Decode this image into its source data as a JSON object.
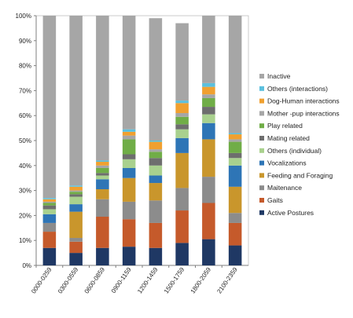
{
  "chart_data": {
    "type": "bar",
    "stacked": "percent",
    "categories": [
      "0000-0259",
      "0300-0559",
      "0600-0859",
      "0900-1159",
      "1200-1459",
      "1500-1759",
      "1800-2059",
      "2100-2359"
    ],
    "ylim": [
      0,
      100
    ],
    "y_ticks": [
      "0%",
      "10%",
      "20%",
      "30%",
      "40%",
      "50%",
      "60%",
      "70%",
      "80%",
      "90%",
      "100%"
    ],
    "grid": false,
    "legend_position": "right",
    "series": [
      {
        "name": "Active Postures",
        "color": "#1f3864",
        "values": [
          7,
          5,
          7,
          7.5,
          7,
          9,
          10.5,
          8
        ]
      },
      {
        "name": "Gaits",
        "color": "#c55a2b",
        "values": [
          6.5,
          4.5,
          12.5,
          11,
          10,
          13,
          14.5,
          9
        ]
      },
      {
        "name": "Maitenance",
        "color": "#8c8c8c",
        "values": [
          3.5,
          1.5,
          7,
          7,
          9,
          9,
          10.5,
          4
        ]
      },
      {
        "name": "Feeding and Foraging",
        "color": "#c9962c",
        "values": [
          0,
          10.5,
          4,
          9.5,
          7,
          14,
          15,
          10.5
        ]
      },
      {
        "name": "Vocalizations",
        "color": "#2e75b6",
        "values": [
          3.5,
          3,
          4,
          4,
          3,
          6,
          6.5,
          8.5
        ]
      },
      {
        "name": "Others (individual)",
        "color": "#a9d18e",
        "values": [
          2,
          3,
          1.5,
          3.5,
          4,
          3.5,
          3.5,
          3
        ]
      },
      {
        "name": "Mating related",
        "color": "#6e6e6e",
        "values": [
          1.5,
          1,
          1,
          2,
          3,
          2,
          3,
          2
        ]
      },
      {
        "name": "Play related",
        "color": "#70ad47",
        "values": [
          1,
          1,
          2,
          6,
          2.5,
          3,
          3.5,
          4.5
        ]
      },
      {
        "name": "Mother -pup interactions",
        "color": "#a6a6a6",
        "values": [
          0.5,
          0.5,
          1,
          1.5,
          1,
          1.5,
          1.5,
          1
        ]
      },
      {
        "name": "Dog-Human interactions",
        "color": "#f0a030",
        "values": [
          1,
          1.5,
          1.5,
          1.5,
          3,
          4,
          3,
          2
        ]
      },
      {
        "name": "Others (interactions)",
        "color": "#5bc0de",
        "values": [
          0.5,
          0.5,
          0.5,
          1,
          0.5,
          1,
          1.5,
          0.5
        ]
      },
      {
        "name": "Inactive",
        "color": "#a6a6a6",
        "values": [
          73,
          68,
          58,
          45.5,
          49,
          31,
          27,
          47
        ]
      }
    ]
  }
}
